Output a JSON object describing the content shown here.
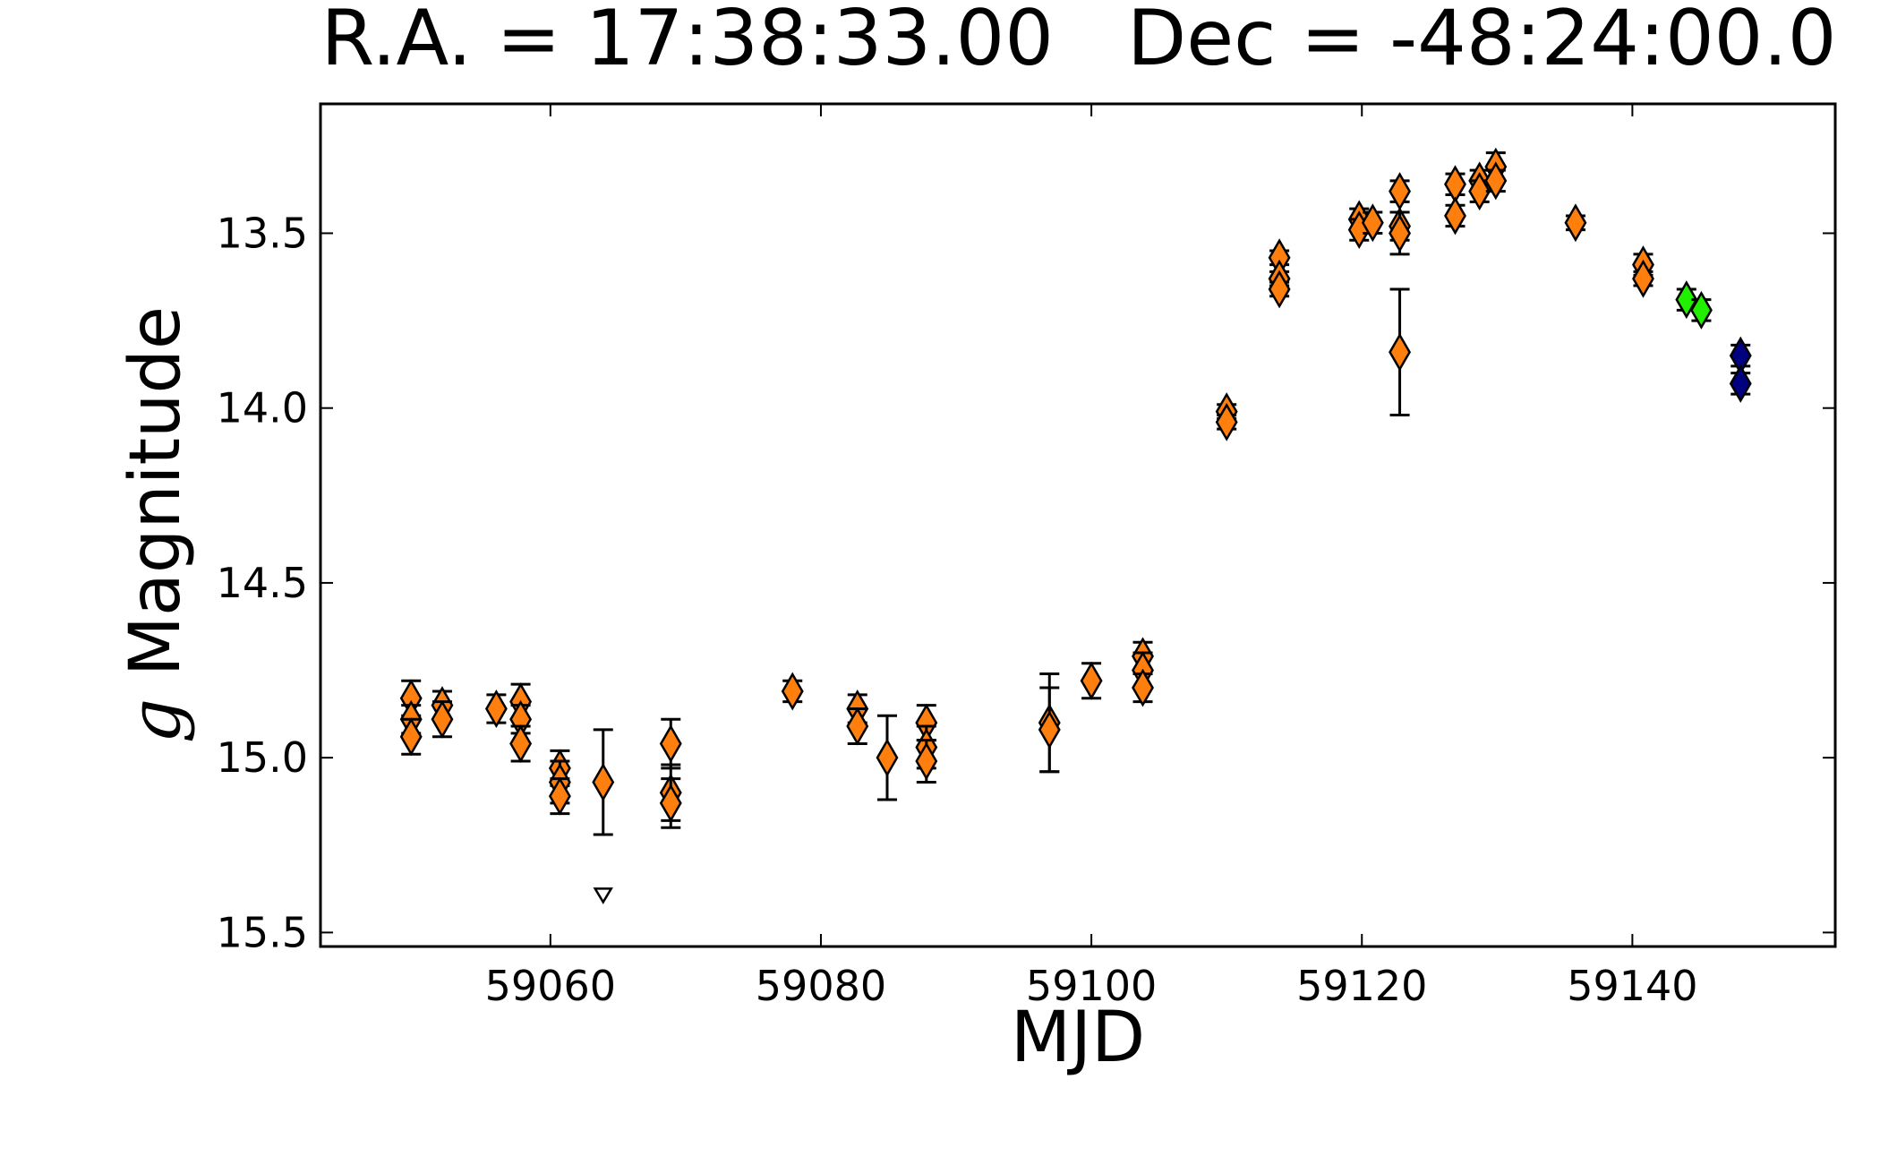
{
  "chart_data": {
    "type": "errorbar-scatter",
    "title": "R.A. = 17:38:33.00   Dec = -48:24:00.0",
    "xlabel": "MJD",
    "ylabel_symbol": "g",
    "ylabel": "Magnitude",
    "xlim": [
      59043,
      59155
    ],
    "ylim": [
      15.54,
      13.13
    ],
    "xticks": [
      59060,
      59080,
      59100,
      59120,
      59140
    ],
    "yticks": [
      13.5,
      {
        "value": 14,
        "label": "14.0"
      },
      14.5,
      {
        "value": 15,
        "label": "15.0"
      },
      15.5
    ],
    "grid": false,
    "series": [
      {
        "color": "#ff7f0e",
        "marker": "diamond",
        "x": [
          59049.7,
          59049.7,
          59049.7,
          59052.0,
          59052.0,
          59056.0,
          59057.8,
          59057.8,
          59057.8,
          59060.7,
          59060.7,
          59060.7,
          59063.9,
          59068.9,
          59068.9,
          59068.9,
          59077.9,
          59082.7,
          59082.7,
          59084.9,
          59087.8,
          59087.8,
          59087.8,
          59096.9,
          59096.9,
          59100.0,
          59103.8,
          59103.8,
          59103.8,
          59110.0,
          59110.0,
          59113.9,
          59113.9,
          59113.9,
          59119.8,
          59119.8,
          59120.8,
          59122.8,
          59122.8,
          59122.8,
          59122.8,
          59126.9,
          59126.9,
          59128.7,
          59128.7,
          59129.9,
          59129.9,
          59135.8,
          59140.8,
          59140.8
        ],
        "values": [
          14.83,
          14.89,
          14.94,
          14.85,
          14.89,
          14.86,
          14.84,
          14.89,
          14.96,
          15.03,
          15.07,
          15.11,
          15.07,
          14.96,
          15.1,
          15.13,
          14.81,
          14.86,
          14.91,
          15.0,
          14.9,
          14.97,
          15.01,
          14.9,
          14.92,
          14.78,
          14.71,
          14.75,
          14.8,
          14.01,
          14.04,
          13.57,
          13.63,
          13.66,
          13.46,
          13.49,
          13.47,
          13.38,
          13.48,
          13.5,
          13.84,
          13.36,
          13.45,
          13.35,
          13.38,
          13.31,
          13.35,
          13.47,
          13.59,
          13.63
        ],
        "errors": [
          0.05,
          0.04,
          0.05,
          0.04,
          0.05,
          0.04,
          0.05,
          0.04,
          0.05,
          0.05,
          0.06,
          0.05,
          0.15,
          0.07,
          0.08,
          0.07,
          0.03,
          0.04,
          0.05,
          0.12,
          0.05,
          0.06,
          0.06,
          0.14,
          0.12,
          0.05,
          0.04,
          0.05,
          0.04,
          0.02,
          0.02,
          0.02,
          0.02,
          0.02,
          0.03,
          0.03,
          0.03,
          0.03,
          0.04,
          0.06,
          0.18,
          0.03,
          0.03,
          0.03,
          0.03,
          0.04,
          0.03,
          0.02,
          0.03,
          0.02
        ]
      },
      {
        "color": "#22ee00",
        "marker": "diamond",
        "x": [
          59144.0,
          59145.1
        ],
        "values": [
          13.69,
          13.72
        ],
        "errors": [
          0.03,
          0.03
        ]
      },
      {
        "color": "#000080",
        "marker": "diamond",
        "x": [
          59148.0,
          59148.0
        ],
        "values": [
          13.85,
          13.93
        ],
        "errors": [
          0.03,
          0.03
        ]
      },
      {
        "color": "#ffffff",
        "marker": "triangle-down",
        "x": [
          59063.9
        ],
        "values": [
          15.39
        ]
      }
    ]
  }
}
